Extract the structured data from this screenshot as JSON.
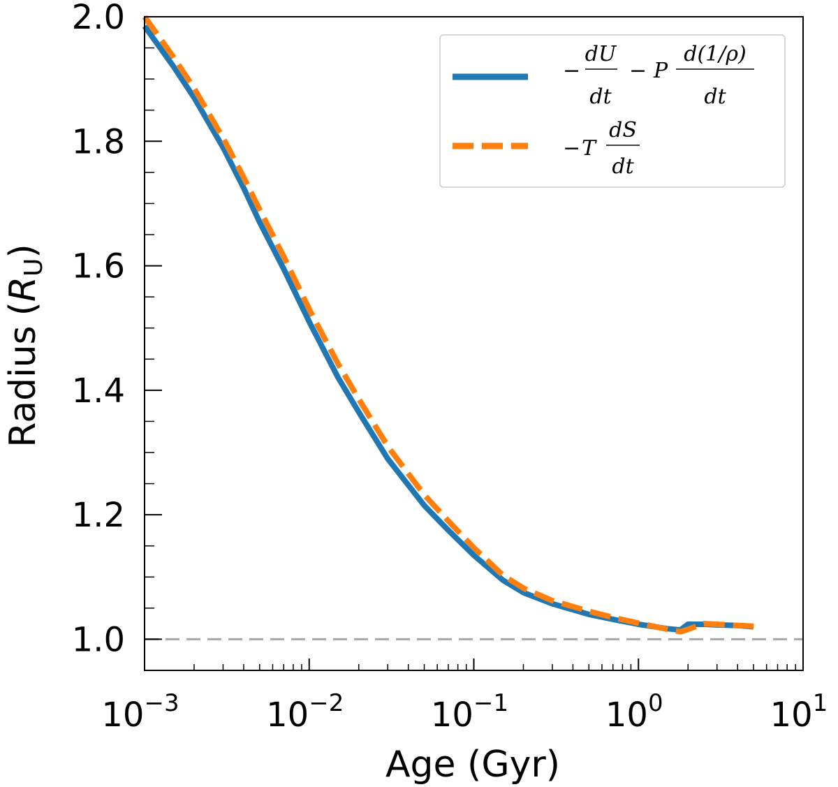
{
  "chart_data": {
    "type": "line",
    "title": "",
    "xlabel": "Age (Gyr)",
    "ylabel": "Radius",
    "ylabel_unit_symbol": "R",
    "ylabel_unit_subscript": "U",
    "xscale": "log",
    "xlim": [
      0.001,
      10
    ],
    "ylim": [
      0.95,
      2.0
    ],
    "x_ticks": [
      {
        "value": 0.001,
        "base": "10",
        "exp": "−3"
      },
      {
        "value": 0.01,
        "base": "10",
        "exp": "−2"
      },
      {
        "value": 0.1,
        "base": "10",
        "exp": "−1"
      },
      {
        "value": 1,
        "base": "10",
        "exp": "0"
      },
      {
        "value": 10,
        "base": "10",
        "exp": "1"
      }
    ],
    "y_ticks": [
      "1.0",
      "1.2",
      "1.4",
      "1.6",
      "1.8",
      "2.0"
    ],
    "reference_line": {
      "y": 1.0,
      "style": "dashed",
      "color": "#a6a6a6"
    },
    "legend_position": "top-right",
    "series": [
      {
        "name": "-dU/dt - P d(1/rho)/dt",
        "color": "#1f77b4",
        "style": "solid",
        "x": [
          0.001,
          0.0015,
          0.002,
          0.003,
          0.004,
          0.005,
          0.007,
          0.01,
          0.015,
          0.02,
          0.03,
          0.05,
          0.07,
          0.1,
          0.15,
          0.2,
          0.3,
          0.5,
          0.7,
          1.0,
          1.5,
          1.8,
          2.0,
          2.2,
          2.5,
          3.0,
          4.0,
          5.0
        ],
        "y": [
          1.985,
          1.92,
          1.87,
          1.79,
          1.725,
          1.67,
          1.595,
          1.51,
          1.42,
          1.365,
          1.29,
          1.215,
          1.175,
          1.135,
          1.095,
          1.075,
          1.057,
          1.04,
          1.032,
          1.024,
          1.017,
          1.015,
          1.024,
          1.024,
          1.024,
          1.023,
          1.022,
          1.02
        ]
      },
      {
        "name": "-T dS/dt",
        "color": "#ff7f0e",
        "style": "dashed",
        "x": [
          0.001,
          0.0015,
          0.002,
          0.003,
          0.004,
          0.005,
          0.007,
          0.01,
          0.015,
          0.02,
          0.03,
          0.05,
          0.07,
          0.1,
          0.15,
          0.2,
          0.3,
          0.5,
          0.7,
          1.0,
          1.5,
          1.8,
          2.0,
          2.2,
          2.5,
          3.0,
          4.0,
          5.0
        ],
        "y": [
          2.0,
          1.935,
          1.885,
          1.805,
          1.742,
          1.69,
          1.615,
          1.53,
          1.442,
          1.386,
          1.31,
          1.232,
          1.19,
          1.147,
          1.103,
          1.082,
          1.062,
          1.045,
          1.035,
          1.026,
          1.016,
          1.012,
          1.016,
          1.02,
          1.025,
          1.024,
          1.022,
          1.021
        ]
      }
    ]
  }
}
